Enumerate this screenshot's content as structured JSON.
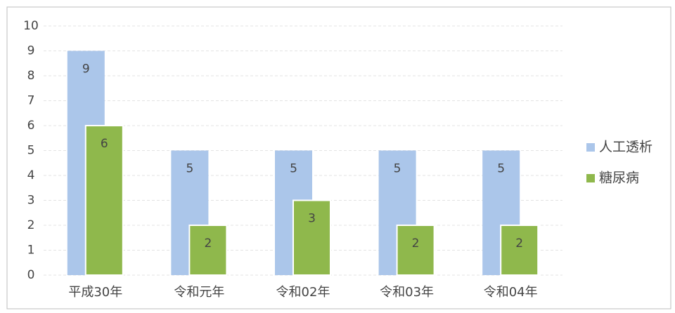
{
  "chart_data": {
    "type": "bar",
    "categories": [
      "平成30年",
      "令和元年",
      "令和02年",
      "令和03年",
      "令和04年"
    ],
    "series": [
      {
        "name": "人工透析",
        "color": "#abc6ea",
        "values": [
          9,
          5,
          5,
          5,
          5
        ]
      },
      {
        "name": "糖尿病",
        "color": "#8fb84c",
        "values": [
          6,
          2,
          3,
          2,
          2
        ]
      }
    ],
    "ylim": [
      0,
      10
    ],
    "yticks": [
      0,
      1,
      2,
      3,
      4,
      5,
      6,
      7,
      8,
      9,
      10
    ],
    "grid": true,
    "legend": "right"
  }
}
